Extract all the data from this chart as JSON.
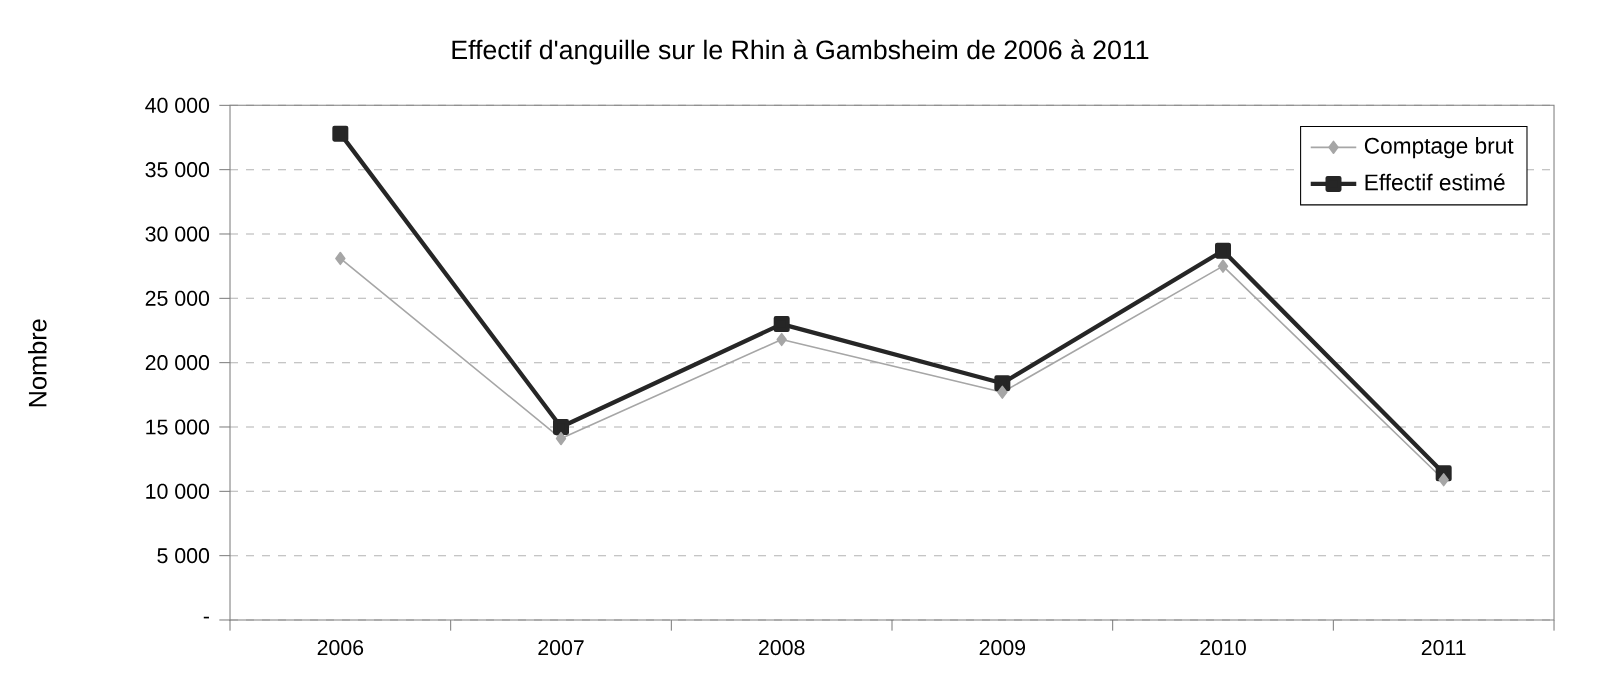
{
  "chart_data": {
    "type": "line",
    "title": "Effectif d'anguille sur le Rhin à Gambsheim de 2006 à 2011",
    "ylabel": "Nombre",
    "categories": [
      "2006",
      "2007",
      "2008",
      "2009",
      "2010",
      "2011"
    ],
    "series": [
      {
        "name": "Comptage brut",
        "color": "#a6a6a6",
        "marker": "diamond",
        "values": [
          28100,
          14100,
          21800,
          17700,
          27500,
          10900
        ]
      },
      {
        "name": "Effectif estimé",
        "color": "#262626",
        "marker": "square",
        "values": [
          37800,
          15000,
          23000,
          18400,
          28700,
          11400
        ]
      }
    ],
    "ylim": [
      0,
      40000
    ],
    "yticks": [
      {
        "value": 0,
        "label": "-"
      },
      {
        "value": 5000,
        "label": "5 000"
      },
      {
        "value": 10000,
        "label": "10 000"
      },
      {
        "value": 15000,
        "label": "15 000"
      },
      {
        "value": 20000,
        "label": "20 000"
      },
      {
        "value": 25000,
        "label": "25 000"
      },
      {
        "value": 30000,
        "label": "30 000"
      },
      {
        "value": 35000,
        "label": "35 000"
      },
      {
        "value": 40000,
        "label": "40 000"
      }
    ],
    "grid": "y",
    "legend": "top right",
    "line_style": "solid"
  }
}
